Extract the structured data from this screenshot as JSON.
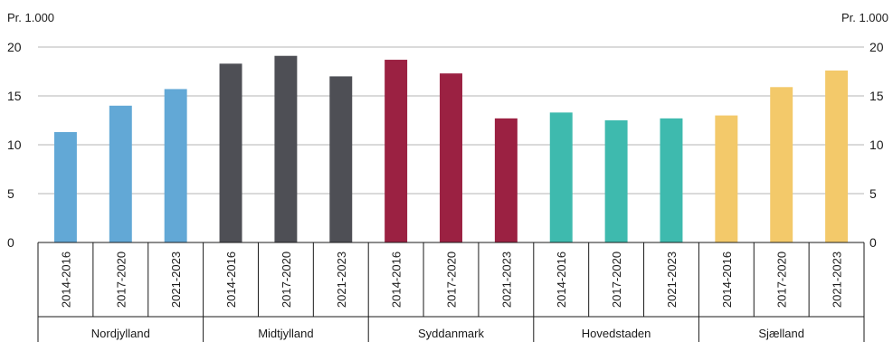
{
  "chart_data": {
    "type": "bar",
    "left_unit": "Pr. 1.000",
    "right_unit": "Pr. 1.000",
    "ylim": [
      0,
      20
    ],
    "y_ticks": [
      "0",
      "5",
      "10",
      "15",
      "20"
    ],
    "grid": true,
    "groups": [
      {
        "region": "Nordjylland",
        "color": "#62a8d6",
        "bars": [
          {
            "period": "2014-2016",
            "value": 11.3
          },
          {
            "period": "2017-2020",
            "value": 14.0
          },
          {
            "period": "2021-2023",
            "value": 15.7
          }
        ]
      },
      {
        "region": "Midtjylland",
        "color": "#4e4f55",
        "bars": [
          {
            "period": "2014-2016",
            "value": 18.3
          },
          {
            "period": "2017-2020",
            "value": 19.1
          },
          {
            "period": "2021-2023",
            "value": 17.0
          }
        ]
      },
      {
        "region": "Syddanmark",
        "color": "#9b2142",
        "bars": [
          {
            "period": "2014-2016",
            "value": 18.7
          },
          {
            "period": "2017-2020",
            "value": 17.3
          },
          {
            "period": "2021-2023",
            "value": 12.7
          }
        ]
      },
      {
        "region": "Hovedstaden",
        "color": "#3ebaae",
        "bars": [
          {
            "period": "2014-2016",
            "value": 13.3
          },
          {
            "period": "2017-2020",
            "value": 12.5
          },
          {
            "period": "2021-2023",
            "value": 12.7
          }
        ]
      },
      {
        "region": "Sjælland",
        "color": "#f3c96a",
        "bars": [
          {
            "period": "2014-2016",
            "value": 13.0
          },
          {
            "period": "2017-2020",
            "value": 15.9
          },
          {
            "period": "2021-2023",
            "value": 17.6
          }
        ]
      }
    ]
  }
}
